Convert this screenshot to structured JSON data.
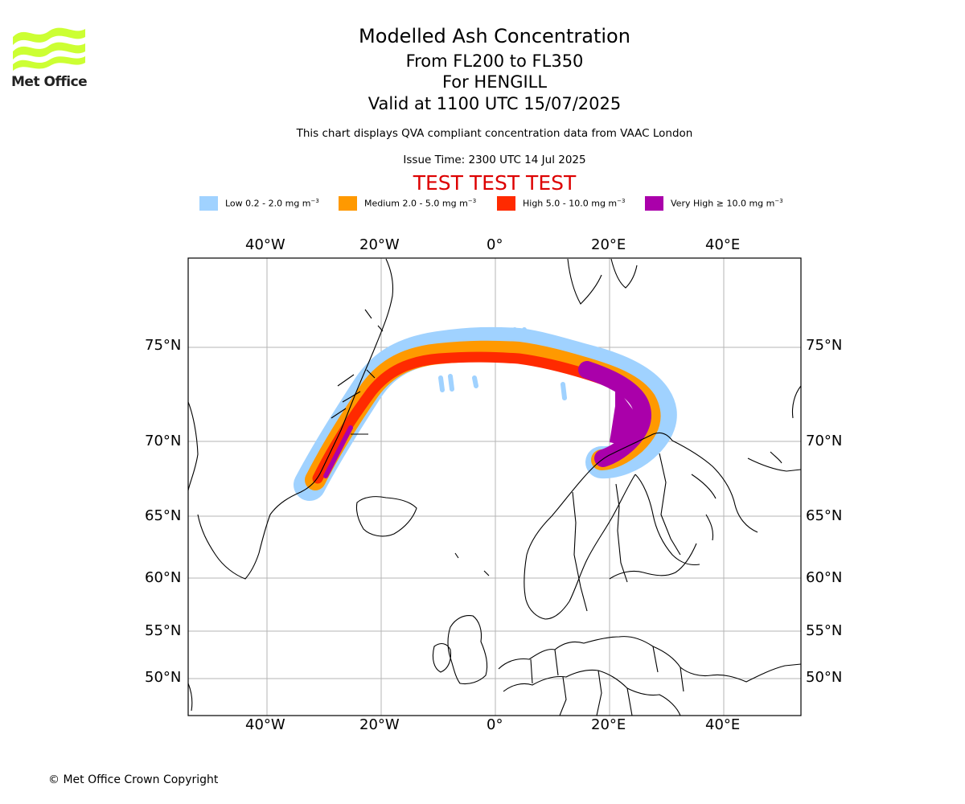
{
  "logo": {
    "text": "Met Office",
    "icon": "met-office-wave-logo",
    "color": "#ccff33"
  },
  "titles": {
    "main": "Modelled Ash Concentration",
    "levels": "From FL200 to FL350",
    "volcano": "For HENGILL",
    "valid": "Valid at 1100 UTC 15/07/2025",
    "note": "This chart displays QVA compliant concentration data from VAAC London",
    "issue": "Issue Time: 2300 UTC 14 Jul 2025",
    "test": "TEST TEST TEST"
  },
  "legend": [
    {
      "label": "Low 0.2 - 2.0 mg m",
      "sup": "−3",
      "color": "#a0d2ff"
    },
    {
      "label": "Medium 2.0 - 5.0 mg m",
      "sup": "−3",
      "color": "#ff9900"
    },
    {
      "label": "High 5.0 - 10.0 mg m",
      "sup": "−3",
      "color": "#ff2a00"
    },
    {
      "label": "Very High  ≥  10.0 mg m",
      "sup": "−3",
      "color": "#aa00aa"
    }
  ],
  "map": {
    "lon_labels": [
      "40°W",
      "20°W",
      "0°",
      "20°E",
      "40°E"
    ],
    "lat_labels": [
      "75°N",
      "70°N",
      "65°N",
      "60°N",
      "55°N",
      "50°N"
    ],
    "grid": true,
    "projection": "polar stereographic",
    "ash_cloud": "arc from East Greenland across the Norwegian Sea to northern Scandinavia"
  },
  "footer": {
    "copyright": "© Met Office Crown Copyright"
  }
}
